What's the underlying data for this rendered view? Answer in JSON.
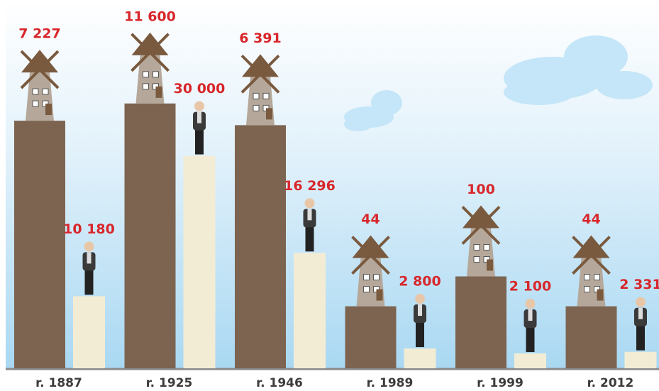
{
  "chart_data": {
    "type": "bar",
    "categories": [
      "r. 1887",
      "r. 1925",
      "r. 1946",
      "r. 1989",
      "r. 1999",
      "r. 2012"
    ],
    "series": [
      {
        "color": "#7d6450",
        "axis": "y2",
        "values": [
          7227,
          11600,
          6391,
          44,
          100,
          44
        ],
        "value_labels": [
          "7 227",
          "11 600",
          "6 391",
          "44",
          "100",
          "44"
        ]
      },
      {
        "color": "#f3ecd5",
        "values": [
          10180,
          30000,
          16296,
          2800,
          2100,
          2331
        ],
        "value_labels": [
          "10 180",
          "30 000",
          "16 296",
          "2 800",
          "2 100",
          "2 331"
        ]
      }
    ],
    "ylim": [
      0,
      50000
    ],
    "y2lim": [
      8,
      135000
    ],
    "y2scale": "log",
    "grid": false
  }
}
